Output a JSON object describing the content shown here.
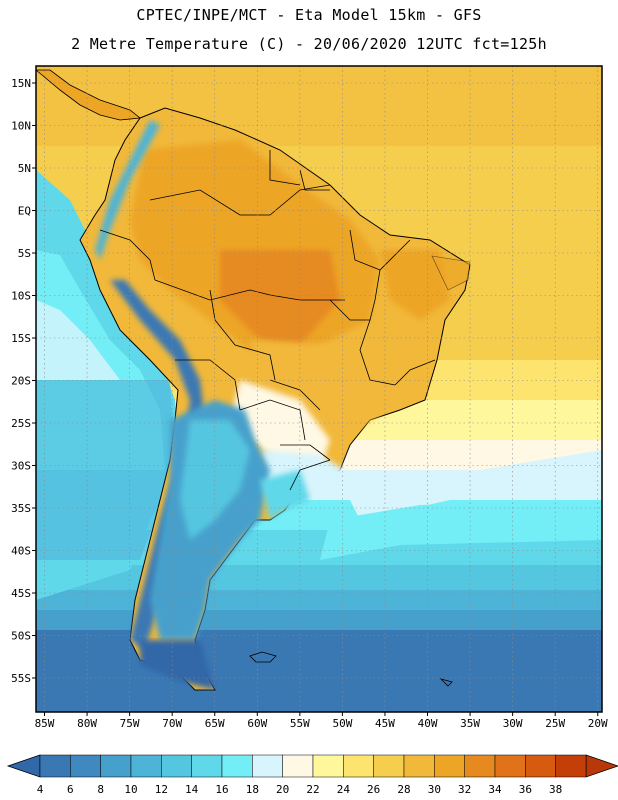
{
  "header": {
    "title_line1": "CPTEC/INPE/MCT -  Eta Model 15km - GFS",
    "title_line2": "2 Metre Temperature (C) - 20/06/2020 12UTC fct=125h"
  },
  "map": {
    "lon_min": -86,
    "lon_max": -19.5,
    "lat_min": -59,
    "lat_max": 17,
    "lat_ticks": [
      {
        "value": 15,
        "label": "15N"
      },
      {
        "value": 10,
        "label": "10N"
      },
      {
        "value": 5,
        "label": "5N"
      },
      {
        "value": 0,
        "label": "EQ"
      },
      {
        "value": -5,
        "label": "5S"
      },
      {
        "value": -10,
        "label": "10S"
      },
      {
        "value": -15,
        "label": "15S"
      },
      {
        "value": -20,
        "label": "20S"
      },
      {
        "value": -25,
        "label": "25S"
      },
      {
        "value": -30,
        "label": "30S"
      },
      {
        "value": -35,
        "label": "35S"
      },
      {
        "value": -40,
        "label": "40S"
      },
      {
        "value": -45,
        "label": "45S"
      },
      {
        "value": -50,
        "label": "50S"
      },
      {
        "value": -55,
        "label": "55S"
      }
    ],
    "lon_ticks": [
      {
        "value": -85,
        "label": "85W"
      },
      {
        "value": -80,
        "label": "80W"
      },
      {
        "value": -75,
        "label": "75W"
      },
      {
        "value": -70,
        "label": "70W"
      },
      {
        "value": -65,
        "label": "65W"
      },
      {
        "value": -60,
        "label": "60W"
      },
      {
        "value": -55,
        "label": "55W"
      },
      {
        "value": -50,
        "label": "50W"
      },
      {
        "value": -45,
        "label": "45W"
      },
      {
        "value": -40,
        "label": "40W"
      },
      {
        "value": -35,
        "label": "35W"
      },
      {
        "value": -30,
        "label": "30W"
      },
      {
        "value": -25,
        "label": "25W"
      },
      {
        "value": -20,
        "label": "20W"
      }
    ]
  },
  "colorbar": {
    "unit": "C",
    "levels": [
      "4",
      "6",
      "8",
      "10",
      "12",
      "14",
      "16",
      "18",
      "20",
      "22",
      "24",
      "26",
      "28",
      "30",
      "32",
      "34",
      "36",
      "38"
    ],
    "colors": [
      "#3a78b4",
      "#3f88c0",
      "#46a0cc",
      "#4db4d8",
      "#55c6e0",
      "#5fd8ea",
      "#74eef6",
      "#d8f4fc",
      "#fff8e4",
      "#fff79c",
      "#fce46e",
      "#f6ce4e",
      "#f1b83a",
      "#eda526",
      "#e68a20",
      "#e0731a",
      "#d65a10",
      "#c43e08"
    ],
    "below_color": "#3168a8",
    "above_color": "#b8380a"
  }
}
